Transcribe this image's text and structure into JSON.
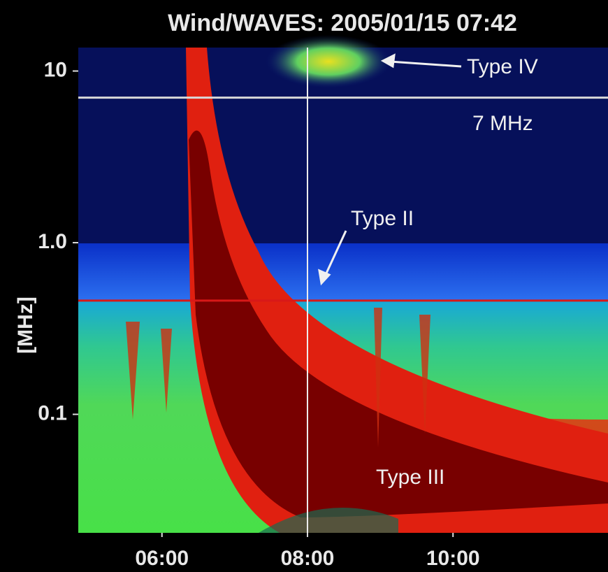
{
  "chart_data": {
    "type": "spectrogram",
    "title": "Wind/WAVES: 2005/01/15 07:42",
    "y_label": "[MHz]",
    "y_scale": "log",
    "xlim": [
      4.85,
      12.13
    ],
    "xticks": [
      {
        "value": 6,
        "label": "06:00"
      },
      {
        "value": 8,
        "label": "08:00"
      },
      {
        "value": 10,
        "label": "10:00"
      }
    ],
    "ylim": [
      0.0204,
      13.7
    ],
    "yticks": [
      10,
      {
        "value": 1,
        "label": "1.0"
      },
      0.1
    ],
    "markers": [
      {
        "axis": "y",
        "value": 7,
        "color": "#d8d8d8"
      },
      {
        "axis": "y",
        "value": 0.46,
        "color": "#d81818"
      },
      {
        "axis": "x",
        "value": 8,
        "color": "#eeeeee"
      }
    ],
    "annotations": [
      "Type IV",
      "7 MHz",
      "Type II",
      "Type III"
    ]
  }
}
